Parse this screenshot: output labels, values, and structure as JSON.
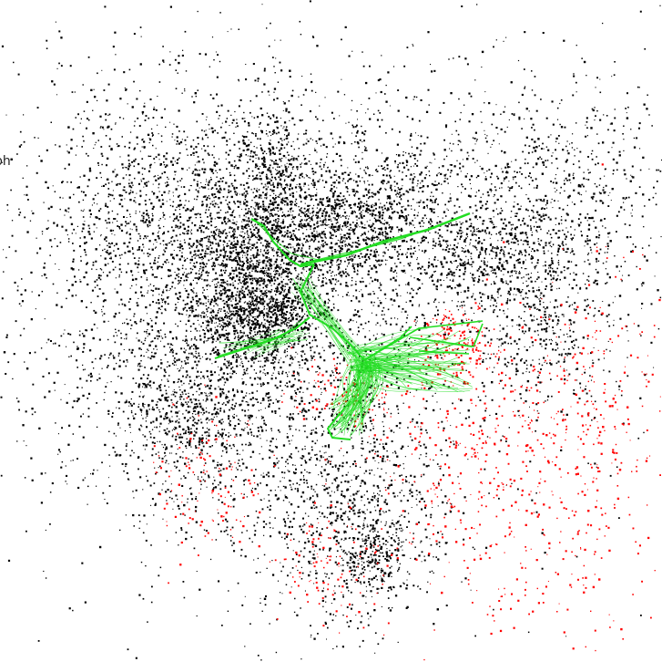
{
  "visible_label": "ph",
  "colors": {
    "background": "#ffffff",
    "black_nodes": "#000000",
    "red_nodes": "#ff0000",
    "green_edges": "#22dd22"
  }
}
